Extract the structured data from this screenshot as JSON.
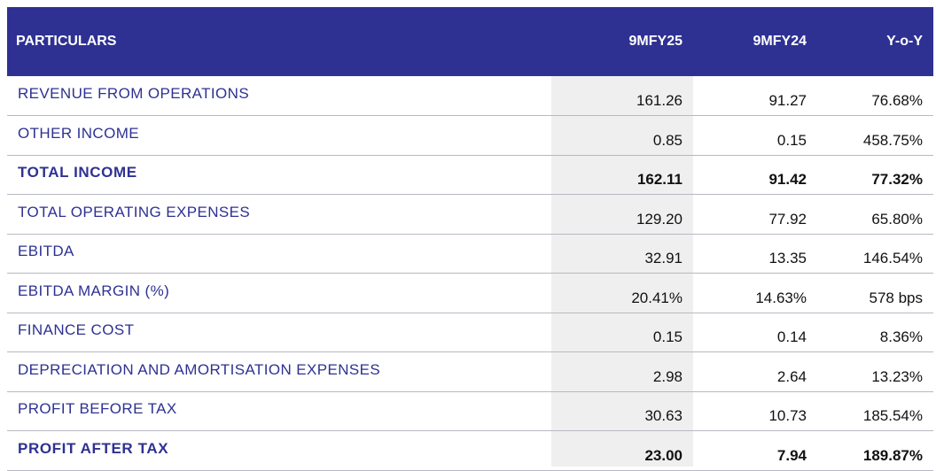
{
  "table": {
    "headers": [
      "PARTICULARS",
      "9MFY25",
      "9MFY24",
      "Y-o-Y"
    ],
    "rows": [
      {
        "label": "REVENUE FROM OPERATIONS",
        "fy25": "161.26",
        "fy24": "91.27",
        "yoy": "76.68%",
        "bold": false
      },
      {
        "label": "OTHER INCOME",
        "fy25": "0.85",
        "fy24": "0.15",
        "yoy": "458.75%",
        "bold": false
      },
      {
        "label": "TOTAL INCOME",
        "fy25": "162.11",
        "fy24": "91.42",
        "yoy": "77.32%",
        "bold": true
      },
      {
        "label": "TOTAL OPERATING EXPENSES",
        "fy25": "129.20",
        "fy24": "77.92",
        "yoy": "65.80%",
        "bold": false
      },
      {
        "label": "EBITDA",
        "fy25": "32.91",
        "fy24": "13.35",
        "yoy": "146.54%",
        "bold": false
      },
      {
        "label": "EBITDA MARGIN (%)",
        "fy25": "20.41%",
        "fy24": "14.63%",
        "yoy": "578 bps",
        "bold": false
      },
      {
        "label": "FINANCE COST",
        "fy25": "0.15",
        "fy24": "0.14",
        "yoy": "8.36%",
        "bold": false
      },
      {
        "label": "DEPRECIATION AND AMORTISATION EXPENSES",
        "fy25": "2.98",
        "fy24": "2.64",
        "yoy": "13.23%",
        "bold": false
      },
      {
        "label": "PROFIT BEFORE TAX",
        "fy25": "30.63",
        "fy24": "10.73",
        "yoy": "185.54%",
        "bold": false
      },
      {
        "label": "PROFIT AFTER TAX",
        "fy25": "23.00",
        "fy24": "7.94",
        "yoy": "189.87%",
        "bold": true
      }
    ]
  },
  "colors": {
    "header_bg": "#2e3192",
    "label_text": "#2e3192",
    "highlight_column": "#efefef"
  }
}
